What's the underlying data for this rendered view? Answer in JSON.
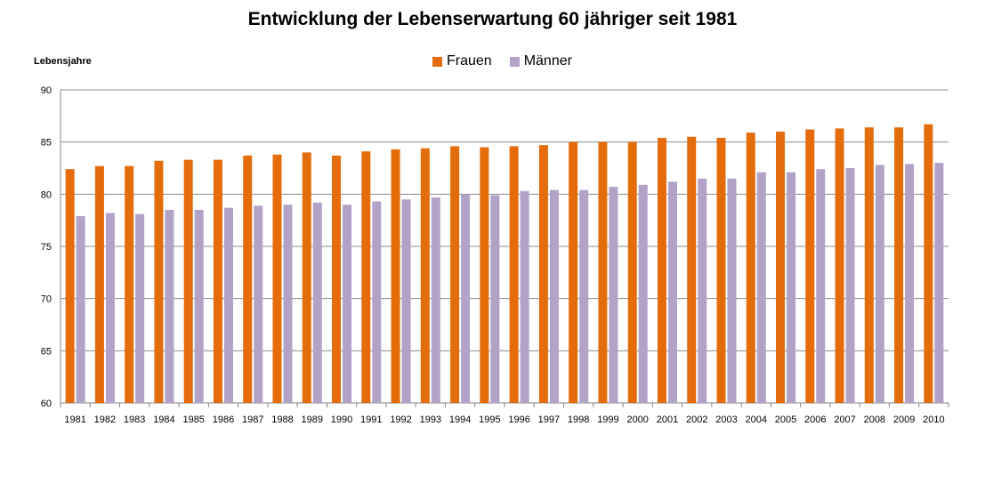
{
  "chart_data": {
    "type": "bar",
    "title": "Entwicklung der Lebenserwartung 60 jähriger seit 1981",
    "ylabel": "Lebensjahre",
    "xlabel": "",
    "ylim": [
      60,
      90
    ],
    "yticks": [
      60,
      65,
      70,
      75,
      80,
      85,
      90
    ],
    "grid": true,
    "legend_position": "top-center",
    "categories": [
      "1981",
      "1982",
      "1983",
      "1984",
      "1985",
      "1986",
      "1987",
      "1988",
      "1989",
      "1990",
      "1991",
      "1992",
      "1993",
      "1994",
      "1995",
      "1996",
      "1997",
      "1998",
      "1999",
      "2000",
      "2001",
      "2002",
      "2003",
      "2004",
      "2005",
      "2006",
      "2007",
      "2008",
      "2009",
      "2010"
    ],
    "series": [
      {
        "name": "Frauen",
        "color": "#E46C0A",
        "values": [
          82.4,
          82.7,
          82.7,
          83.2,
          83.3,
          83.3,
          83.7,
          83.8,
          84.0,
          83.7,
          84.1,
          84.3,
          84.4,
          84.6,
          84.5,
          84.6,
          84.7,
          85.0,
          85.0,
          85.0,
          85.4,
          85.5,
          85.4,
          85.9,
          86.0,
          86.2,
          86.3,
          86.4,
          86.4,
          86.7
        ]
      },
      {
        "name": "Männer",
        "color": "#B3A2C7",
        "values": [
          77.9,
          78.2,
          78.1,
          78.5,
          78.5,
          78.7,
          78.9,
          79.0,
          79.2,
          79.0,
          79.3,
          79.5,
          79.7,
          80.0,
          79.9,
          80.3,
          80.4,
          80.4,
          80.7,
          80.9,
          81.2,
          81.5,
          81.5,
          82.1,
          82.1,
          82.4,
          82.5,
          82.8,
          82.9,
          83.0
        ]
      }
    ]
  }
}
